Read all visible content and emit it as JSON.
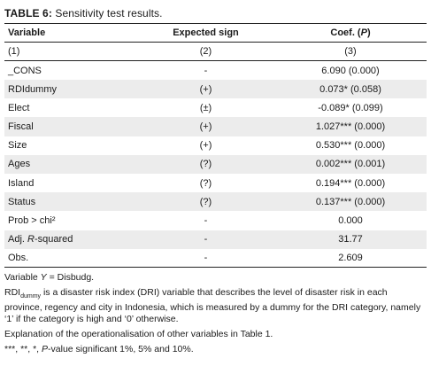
{
  "caption": {
    "label": "TABLE 6:",
    "title": "Sensitivity test results."
  },
  "headers": {
    "col1": "Variable",
    "col2": "Expected sign",
    "col3_a": "Coef. (",
    "col3_p": "P",
    "col3_b": ")"
  },
  "subheaders": {
    "col1": "(1)",
    "col2": "(2)",
    "col3": "(3)"
  },
  "rows": [
    {
      "variable": "_CONS",
      "sign": "-",
      "coef": "6.090 (0.000)"
    },
    {
      "variable": "RDIdummy",
      "sign": "(+)",
      "coef": "0.073* (0.058)"
    },
    {
      "variable": "Elect",
      "sign": "(±)",
      "coef": "-0.089* (0.099)"
    },
    {
      "variable": "Fiscal",
      "sign": "(+)",
      "coef": "1.027*** (0.000)"
    },
    {
      "variable": "Size",
      "sign": "(+)",
      "coef": "0.530*** (0.000)"
    },
    {
      "variable": "Ages",
      "sign": "(?)",
      "coef": "0.002*** (0.001)"
    },
    {
      "variable": "Island",
      "sign": "(?)",
      "coef": "0.194*** (0.000)"
    },
    {
      "variable": "Status",
      "sign": "(?)",
      "coef": "0.137*** (0.000)"
    },
    {
      "variable": "Prob > chi²",
      "sign": "-",
      "coef": "0.000"
    },
    {
      "variable_a": "Adj. ",
      "variable_r": "R",
      "variable_b": "-squared",
      "sign": "-",
      "coef": "31.77"
    },
    {
      "variable": "Obs.",
      "sign": "-",
      "coef": "2.609"
    }
  ],
  "notes": {
    "n1_a": "Variable ",
    "n1_y": "Y",
    "n1_b": " = Disbudg.",
    "n2_rdi": "RDI",
    "n2_sub": "dummy",
    "n2_rest": " is a disaster risk index (DRI) variable that describes the level of disaster risk in each province, regency and city in Indonesia, which is measured by a dummy for the DRI category, namely ‘1’ if the category is high and ‘0’ otherwise.",
    "n3": "Explanation of the operationalisation of other variables in Table 1.",
    "n4_a": "***, **, *, ",
    "n4_p": "P",
    "n4_b": "-value significant 1%, 5% and 10%."
  }
}
